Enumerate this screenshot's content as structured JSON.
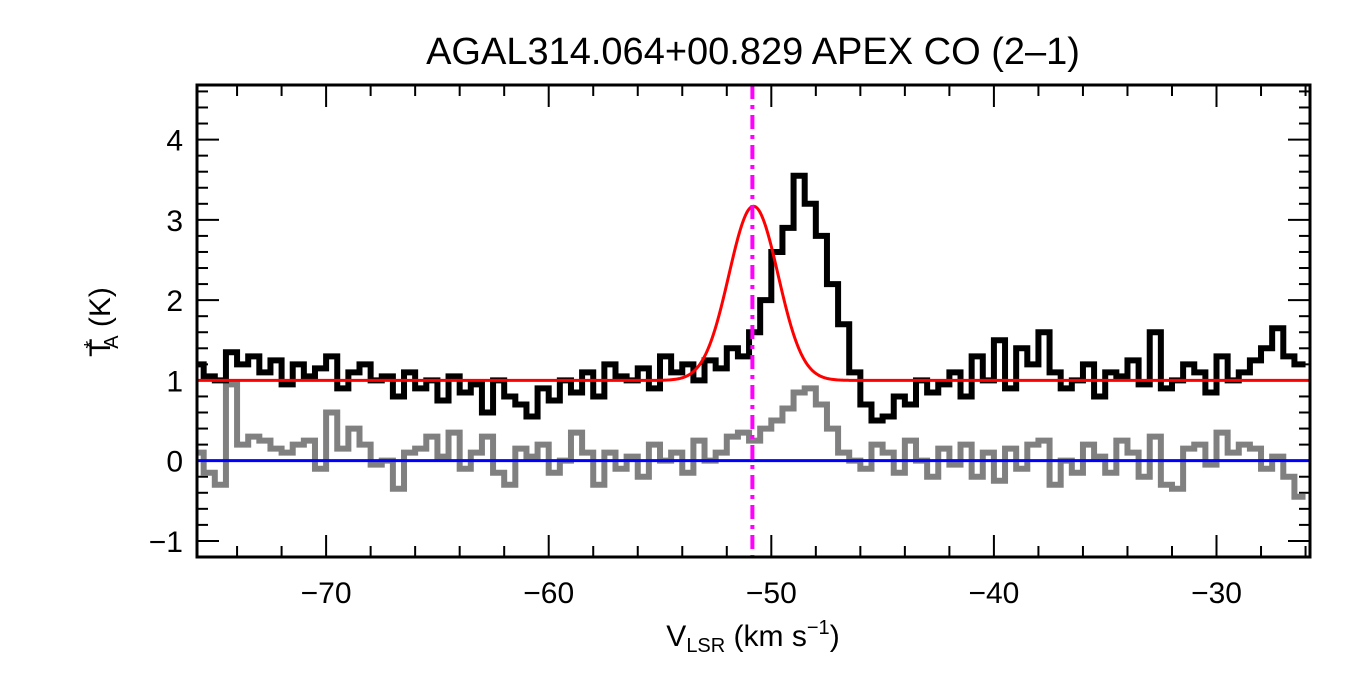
{
  "chart_data": {
    "type": "line",
    "title": "AGAL314.064+00.829  APEX CO (2–1)",
    "xlabel": {
      "main": "V",
      "sub": "LSR",
      "rest": " (km s",
      "sup": "−1",
      "end": ")"
    },
    "ylabel": {
      "main": "T",
      "sup": "*",
      "sub": "A",
      "rest": " (K)"
    },
    "xlim": [
      -75.8,
      -25.8
    ],
    "ylim": [
      -1.2,
      4.68
    ],
    "xticks": [
      -70,
      -60,
      -50,
      -40,
      -30
    ],
    "xtick_labels": [
      "−70",
      "−60",
      "−50",
      "−40",
      "−30"
    ],
    "yticks": [
      -1,
      0,
      1,
      2,
      3,
      4
    ],
    "ytick_labels": [
      "−1",
      "0",
      "1",
      "2",
      "3",
      "4"
    ],
    "grid": false,
    "colors": {
      "spectrum": "#000000",
      "residual": "#808080",
      "fit": "#ff0000",
      "zero_line": "#0000ff",
      "velocity_marker": "#ff00ff"
    },
    "channel_start": -75.75,
    "channel_width": 0.5,
    "spectrum": [
      1.2,
      1.05,
      1.0,
      1.35,
      1.2,
      1.3,
      1.1,
      1.25,
      0.95,
      1.2,
      1.05,
      1.15,
      1.3,
      0.9,
      1.1,
      1.2,
      1.0,
      1.05,
      0.8,
      1.1,
      0.9,
      1.0,
      0.75,
      1.05,
      0.85,
      0.95,
      0.6,
      1.0,
      0.8,
      0.7,
      0.55,
      0.9,
      0.75,
      1.0,
      0.85,
      1.1,
      0.8,
      1.2,
      1.05,
      1.0,
      1.15,
      0.9,
      1.3,
      1.1,
      1.2,
      1.0,
      1.25,
      1.15,
      1.4,
      1.3,
      1.6,
      2.0,
      2.6,
      2.9,
      3.55,
      3.2,
      2.8,
      2.2,
      1.7,
      1.1,
      0.7,
      0.5,
      0.55,
      0.8,
      0.7,
      1.0,
      0.85,
      0.95,
      1.1,
      0.8,
      1.3,
      1.0,
      1.5,
      0.9,
      1.4,
      1.2,
      1.6,
      1.1,
      0.9,
      1.0,
      1.2,
      0.8,
      1.1,
      1.05,
      1.25,
      0.95,
      1.6,
      0.9,
      1.0,
      1.2,
      1.1,
      0.85,
      1.3,
      1.0,
      1.1,
      1.25,
      1.4,
      1.65,
      1.3,
      1.2
    ],
    "residual": [
      0.1,
      -0.15,
      -0.3,
      0.95,
      0.2,
      0.3,
      0.25,
      0.15,
      0.1,
      0.2,
      0.25,
      -0.1,
      0.6,
      0.15,
      0.4,
      0.2,
      -0.05,
      0.0,
      -0.35,
      0.1,
      0.15,
      0.3,
      0.05,
      0.35,
      -0.1,
      0.1,
      0.3,
      -0.15,
      -0.3,
      0.15,
      0.05,
      0.2,
      -0.15,
      0.0,
      0.35,
      0.1,
      -0.3,
      0.1,
      -0.1,
      0.05,
      -0.2,
      0.2,
      0.0,
      0.1,
      -0.15,
      0.25,
      0.0,
      0.1,
      0.3,
      0.35,
      0.25,
      0.4,
      0.5,
      0.65,
      0.85,
      0.9,
      0.7,
      0.4,
      0.1,
      0.0,
      -0.1,
      0.2,
      0.1,
      -0.15,
      0.25,
      0.0,
      -0.2,
      0.15,
      -0.05,
      0.2,
      -0.2,
      0.1,
      -0.25,
      0.15,
      -0.1,
      0.2,
      0.25,
      -0.3,
      0.0,
      -0.15,
      0.2,
      0.05,
      -0.15,
      0.25,
      0.1,
      -0.2,
      0.3,
      -0.3,
      -0.35,
      0.15,
      0.2,
      -0.05,
      0.35,
      0.1,
      0.2,
      0.15,
      -0.1,
      0.05,
      -0.2,
      -0.45
    ],
    "fit": {
      "model": "gaussian",
      "baseline": 1.0,
      "peak": 2.17,
      "center": -50.8,
      "fwhm": 2.6
    },
    "zero_line": 0,
    "velocity_marker": -50.85
  }
}
